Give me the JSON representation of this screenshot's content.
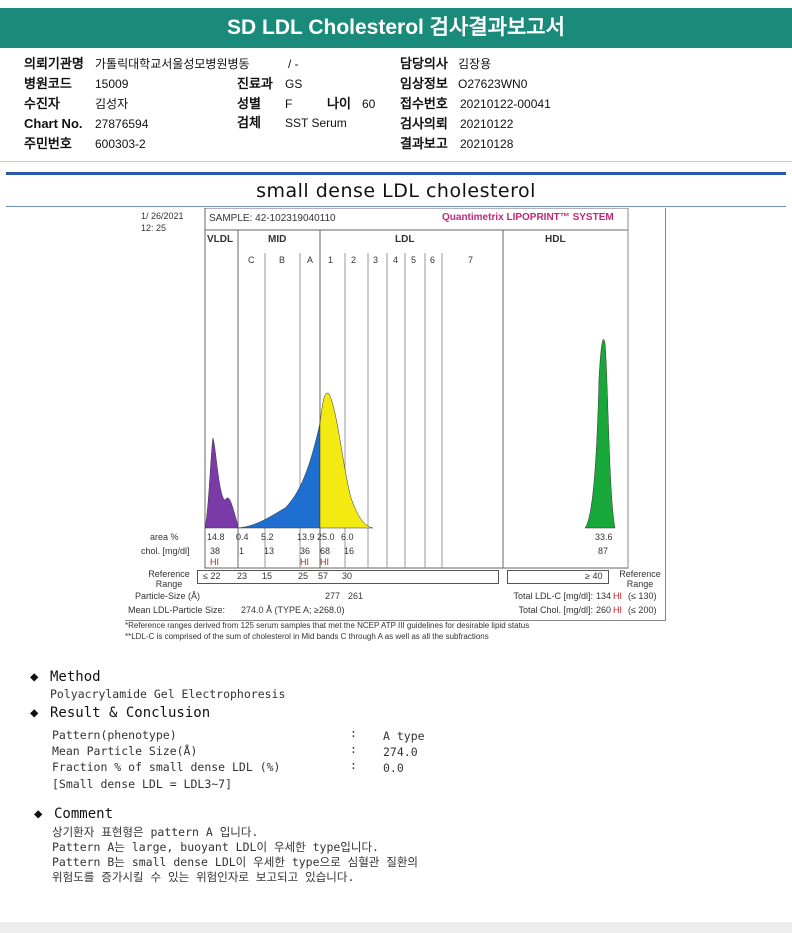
{
  "title": "SD LDL Cholesterol 검사결과보고서",
  "info": {
    "institution_label": "의뢰기관명",
    "institution": "가톨릭대학교서울성모병원병동",
    "ward": "/ -",
    "doctor_label": "담당의사",
    "doctor": "김장용",
    "hospital_code_label": "병원코드",
    "hospital_code": "15009",
    "dept_label": "진료과",
    "dept": "GS",
    "clinical_label": "임상정보",
    "clinical": "O27623WN0",
    "patient_label": "수진자",
    "patient": "김성자",
    "sex_label": "성별",
    "sex": "F",
    "age_label": "나이",
    "age": "60",
    "receipt_label": "접수번호",
    "receipt": "20210122-00041",
    "chart_label": "Chart No.",
    "chart": "27876594",
    "specimen_label": "검체",
    "specimen": "SST Serum",
    "request_label": "검사의뢰",
    "request": "20210122",
    "ssn_label": "주민번호",
    "ssn": "600303-2",
    "report_label": "결과보고",
    "report": "20210128"
  },
  "figure": {
    "title": "small dense LDL cholesterol",
    "date": "1/ 26/2021",
    "time": "12: 25",
    "sample": "SAMPLE:  42-102319040110",
    "brand": "Quantimetrix LIPOPRINT™ SYSTEM",
    "groups": [
      "VLDL",
      "MID",
      "LDL",
      "HDL"
    ],
    "bands": [
      "C",
      "B",
      "A",
      "1",
      "2",
      "3",
      "4",
      "5",
      "6",
      "7"
    ],
    "area_label": "area %",
    "area": [
      "14.8",
      "0.4",
      "5.2",
      "13.9",
      "25.0",
      "6.0",
      "33.6"
    ],
    "chol_label": "chol. [mg/dl]",
    "chol": [
      "38",
      "1",
      "13",
      "36",
      "68",
      "16",
      "87"
    ],
    "hi": "HI",
    "ref_label": "Reference Range",
    "ref": [
      "≤ 22",
      "23",
      "15",
      "25",
      "57",
      "30"
    ],
    "ref_hdl": "≥ 40",
    "psize_label": "Particle-Size (Å)",
    "psize": [
      "277",
      "261"
    ],
    "mean_label": "Mean LDL-Particle Size:",
    "mean": "274.0 Å  (TYPE A; ≥268.0)",
    "total_ldl_label": "Total LDL-C [mg/dl]:",
    "total_ldl": "134",
    "total_ldl_ref": "(≤ 130)",
    "total_chol_label": "Total Chol. [mg/dl]:",
    "total_chol": "260",
    "total_chol_ref": "(≤ 200)",
    "note1": "*Reference ranges derived from 125 serum samples that met the NCEP ATP III guidelines for desirable lipid status",
    "note2": "**LDL-C is comprised of the sum of cholesterol in Mid bands C through A as well as all the subfractions",
    "colors": {
      "vldl": "#7a3aa8",
      "mid": "#1e6fd0",
      "ldl": "#f2ea10",
      "hdl": "#18a83a"
    }
  },
  "method": {
    "heading": "Method",
    "text": "Polyacrylamide Gel Electrophoresis"
  },
  "result": {
    "heading": "Result & Conclusion",
    "rows": [
      {
        "k": "Pattern(phenotype)",
        "v": "A type"
      },
      {
        "k": "Mean Particle Size(Å)",
        "v": "274.0"
      },
      {
        "k": "Fraction % of small dense LDL (%)",
        "v": "0.0"
      }
    ],
    "note": "[Small dense LDL = LDL3~7]"
  },
  "comment": {
    "heading": "Comment",
    "lines": [
      "상기환자 표현형은 pattern A 입니다.",
      "Pattern A는 large, buoyant LDL이 우세한 type입니다.",
      "Pattern B는 small dense LDL이 우세한 type으로 심혈관 질환의",
      "위험도를 증가시킬 수 있는 위험인자로 보고되고 있습니다."
    ]
  }
}
